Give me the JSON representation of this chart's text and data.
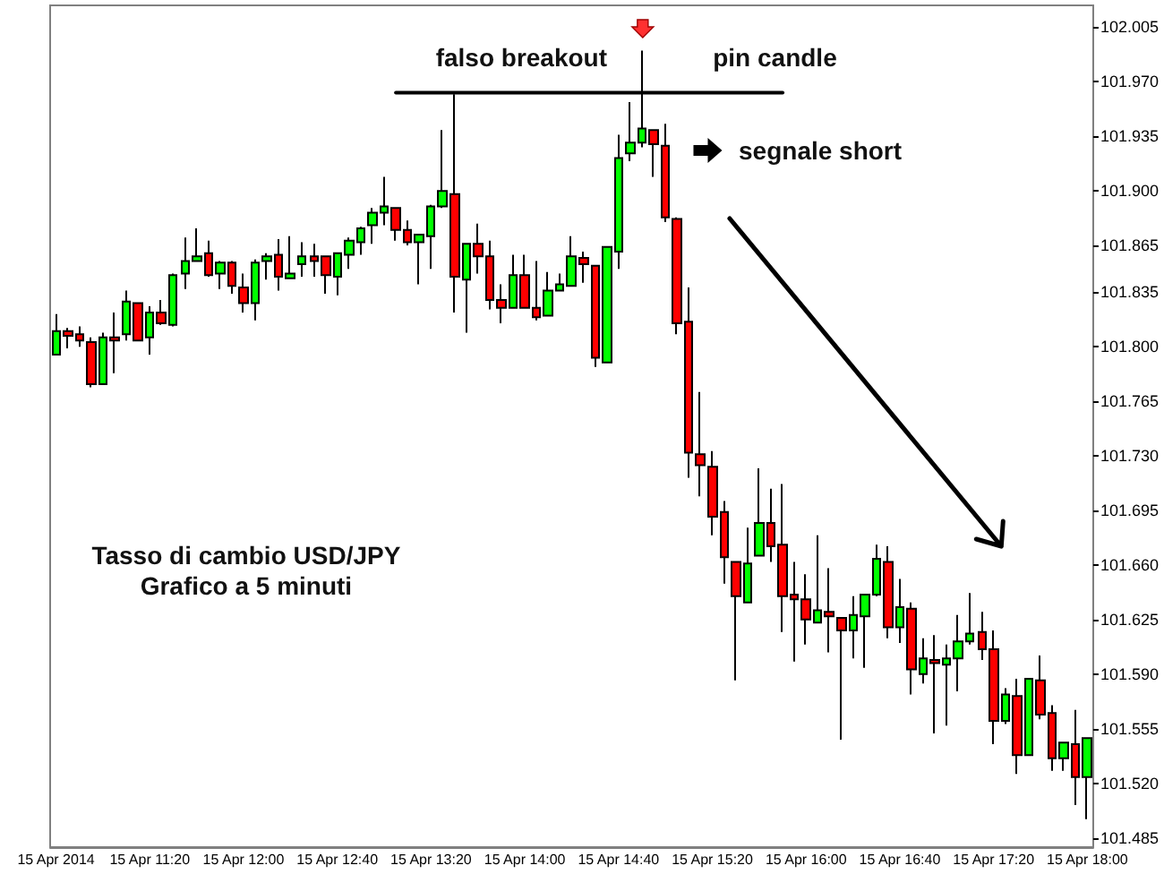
{
  "chart_data": {
    "type": "candlestick",
    "annotations": [
      "falso breakout",
      "pin candle",
      "segnale short",
      "Tasso di cambio USD/JPY",
      "Grafico a 5 minuti"
    ],
    "categories": [
      "15 Apr 2014",
      null,
      null,
      null,
      null,
      null,
      null,
      null,
      "15 Apr 11:20",
      null,
      null,
      null,
      null,
      null,
      null,
      null,
      "15 Apr 12:00",
      null,
      null,
      null,
      null,
      null,
      null,
      null,
      "15 Apr 12:40",
      null,
      null,
      null,
      null,
      null,
      null,
      null,
      "15 Apr 13:20",
      null,
      null,
      null,
      null,
      null,
      null,
      null,
      "15 Apr 14:00",
      null,
      null,
      null,
      null,
      null,
      null,
      null,
      "15 Apr 14:40",
      null,
      null,
      null,
      null,
      null,
      null,
      null,
      "15 Apr 15:20",
      null,
      null,
      null,
      null,
      null,
      null,
      null,
      "15 Apr 16:00",
      null,
      null,
      null,
      null,
      null,
      null,
      null,
      "15 Apr 16:40",
      null,
      null,
      null,
      null,
      null,
      null,
      null,
      "15 Apr 17:20",
      null,
      null,
      null,
      null,
      null,
      null,
      null,
      "15 Apr 18:00"
    ],
    "ohlc": [
      [
        101.795,
        101.821,
        101.795,
        101.81
      ],
      [
        101.81,
        101.812,
        101.799,
        101.807
      ],
      [
        101.808,
        101.813,
        101.8,
        101.804
      ],
      [
        101.803,
        101.806,
        101.774,
        101.776
      ],
      [
        101.776,
        101.809,
        101.776,
        101.806
      ],
      [
        101.806,
        101.822,
        101.783,
        101.804
      ],
      [
        101.808,
        101.836,
        101.804,
        101.829
      ],
      [
        101.828,
        101.828,
        101.804,
        101.804
      ],
      [
        101.806,
        101.826,
        101.795,
        101.822
      ],
      [
        101.822,
        101.83,
        101.814,
        101.815
      ],
      [
        101.814,
        101.847,
        101.813,
        101.846
      ],
      [
        101.847,
        101.87,
        101.837,
        101.855
      ],
      [
        101.855,
        101.876,
        101.855,
        101.858
      ],
      [
        101.86,
        101.868,
        101.845,
        101.846
      ],
      [
        101.847,
        101.855,
        101.837,
        101.854
      ],
      [
        101.854,
        101.855,
        101.834,
        101.839
      ],
      [
        101.838,
        101.847,
        101.822,
        101.828
      ],
      [
        101.828,
        101.856,
        101.817,
        101.854
      ],
      [
        101.855,
        101.86,
        101.843,
        101.858
      ],
      [
        101.859,
        101.869,
        101.836,
        101.845
      ],
      [
        101.844,
        101.871,
        101.844,
        101.847
      ],
      [
        101.853,
        101.867,
        101.845,
        101.858
      ],
      [
        101.858,
        101.866,
        101.845,
        101.855
      ],
      [
        101.858,
        101.858,
        101.834,
        101.846
      ],
      [
        101.845,
        101.86,
        101.833,
        101.86
      ],
      [
        101.859,
        101.87,
        101.85,
        101.868
      ],
      [
        101.867,
        101.877,
        101.859,
        101.876
      ],
      [
        101.878,
        101.889,
        101.866,
        101.886
      ],
      [
        101.886,
        101.909,
        101.878,
        101.89
      ],
      [
        101.889,
        101.889,
        101.868,
        101.875
      ],
      [
        101.875,
        101.881,
        101.865,
        101.867
      ],
      [
        101.867,
        101.872,
        101.84,
        101.872
      ],
      [
        101.871,
        101.891,
        101.85,
        101.89
      ],
      [
        101.89,
        101.939,
        101.889,
        101.9
      ],
      [
        101.898,
        101.962,
        101.822,
        101.845
      ],
      [
        101.843,
        101.866,
        101.809,
        101.866
      ],
      [
        101.866,
        101.879,
        101.847,
        101.858
      ],
      [
        101.858,
        101.868,
        101.824,
        101.83
      ],
      [
        101.83,
        101.84,
        101.815,
        101.825
      ],
      [
        101.825,
        101.859,
        101.825,
        101.846
      ],
      [
        101.846,
        101.859,
        101.825,
        101.825
      ],
      [
        101.825,
        101.855,
        101.817,
        101.819
      ],
      [
        101.82,
        101.848,
        101.82,
        101.836
      ],
      [
        101.836,
        101.847,
        101.836,
        101.84
      ],
      [
        101.839,
        101.871,
        101.839,
        101.858
      ],
      [
        101.857,
        101.861,
        101.841,
        101.853
      ],
      [
        101.852,
        101.852,
        101.787,
        101.793
      ],
      [
        101.79,
        101.864,
        101.79,
        101.864
      ],
      [
        101.861,
        101.936,
        101.85,
        101.921
      ],
      [
        101.924,
        101.957,
        101.919,
        101.931
      ],
      [
        101.931,
        101.99,
        101.928,
        101.94
      ],
      [
        101.939,
        101.939,
        101.909,
        101.93
      ],
      [
        101.929,
        101.943,
        101.88,
        101.883
      ],
      [
        101.882,
        101.883,
        101.808,
        101.815
      ],
      [
        101.816,
        101.838,
        101.716,
        101.732
      ],
      [
        101.731,
        101.771,
        101.704,
        101.724
      ],
      [
        101.723,
        101.733,
        101.679,
        101.691
      ],
      [
        101.694,
        101.701,
        101.648,
        101.665
      ],
      [
        101.662,
        101.662,
        101.586,
        101.64
      ],
      [
        101.636,
        101.684,
        101.636,
        101.661
      ],
      [
        101.666,
        101.722,
        101.666,
        101.687
      ],
      [
        101.687,
        101.709,
        101.662,
        101.672
      ],
      [
        101.673,
        101.712,
        101.617,
        101.64
      ],
      [
        101.641,
        101.662,
        101.598,
        101.638
      ],
      [
        101.638,
        101.654,
        101.609,
        101.625
      ],
      [
        101.623,
        101.679,
        101.623,
        101.631
      ],
      [
        101.63,
        101.658,
        101.604,
        101.627
      ],
      [
        101.626,
        101.626,
        101.548,
        101.618
      ],
      [
        101.618,
        101.64,
        101.6,
        101.628
      ],
      [
        101.627,
        101.641,
        101.594,
        101.641
      ],
      [
        101.641,
        101.673,
        101.64,
        101.664
      ],
      [
        101.662,
        101.672,
        101.613,
        101.62
      ],
      [
        101.62,
        101.651,
        101.61,
        101.633
      ],
      [
        101.632,
        101.636,
        101.577,
        101.593
      ],
      [
        101.59,
        101.613,
        101.584,
        101.6
      ],
      [
        101.599,
        101.615,
        101.552,
        101.597
      ],
      [
        101.596,
        101.609,
        101.557,
        101.6
      ],
      [
        101.6,
        101.628,
        101.579,
        101.611
      ],
      [
        101.611,
        101.642,
        101.609,
        101.616
      ],
      [
        101.617,
        101.63,
        101.599,
        101.606
      ],
      [
        101.606,
        101.618,
        101.545,
        101.56
      ],
      [
        101.56,
        101.581,
        101.558,
        101.577
      ],
      [
        101.576,
        101.587,
        101.526,
        101.538
      ],
      [
        101.538,
        101.587,
        101.538,
        101.587
      ],
      [
        101.586,
        101.602,
        101.561,
        101.564
      ],
      [
        101.565,
        101.57,
        101.528,
        101.536
      ],
      [
        101.536,
        101.546,
        101.528,
        101.546
      ],
      [
        101.545,
        101.567,
        101.506,
        101.524
      ],
      [
        101.524,
        101.549,
        101.497,
        101.549
      ]
    ],
    "colors": [
      "#00ff00",
      "#ff0000",
      "#ff0000",
      "#ff0000",
      "#00ff00",
      "#ff0000",
      "#00ff00",
      "#ff0000",
      "#00ff00",
      "#ff0000",
      "#00ff00",
      "#00ff00",
      "#00ff00",
      "#ff0000",
      "#00ff00",
      "#ff0000",
      "#ff0000",
      "#00ff00",
      "#00ff00",
      "#ff0000",
      "#00ff00",
      "#00ff00",
      "#ff0000",
      "#ff0000",
      "#00ff00",
      "#00ff00",
      "#00ff00",
      "#00ff00",
      "#00ff00",
      "#ff0000",
      "#ff0000",
      "#00ff00",
      "#00ff00",
      "#00ff00",
      "#ff0000",
      "#00ff00",
      "#ff0000",
      "#ff0000",
      "#ff0000",
      "#00ff00",
      "#ff0000",
      "#ff0000",
      "#00ff00",
      "#00ff00",
      "#00ff00",
      "#ff0000",
      "#ff0000",
      "#00ff00",
      "#00ff00",
      "#00ff00",
      "#00ff00",
      "#ff0000",
      "#ff0000",
      "#ff0000",
      "#ff0000",
      "#ff0000",
      "#ff0000",
      "#ff0000",
      "#ff0000",
      "#00ff00",
      "#00ff00",
      "#ff0000",
      "#ff0000",
      "#ff0000",
      "#ff0000",
      "#00ff00",
      "#ff0000",
      "#ff0000",
      "#00ff00",
      "#00ff00",
      "#00ff00",
      "#ff0000",
      "#00ff00",
      "#ff0000",
      "#00ff00",
      "#ff0000",
      "#00ff00",
      "#00ff00",
      "#00ff00",
      "#ff0000",
      "#ff0000",
      "#00ff00",
      "#ff0000",
      "#00ff00",
      "#ff0000",
      "#ff0000",
      "#00ff00",
      "#ff0000",
      "#00ff00"
    ],
    "series": [
      {
        "type": "line",
        "color": "#000000",
        "values": [
          null,
          null,
          null,
          null,
          null,
          null,
          null,
          null,
          null,
          null,
          null,
          null,
          null,
          null,
          null,
          null,
          null,
          null,
          null,
          null,
          null,
          null,
          null,
          null,
          null,
          null,
          null,
          null,
          null,
          101.963,
          null,
          null,
          null,
          null,
          null,
          null,
          null,
          null,
          null,
          null,
          null,
          null,
          null,
          null,
          null,
          null,
          null,
          null,
          null,
          null,
          null,
          null,
          null,
          null,
          null,
          null,
          null,
          null,
          null,
          null,
          null,
          null,
          101.963,
          null,
          null,
          null,
          null,
          null,
          null,
          null,
          null,
          null,
          null,
          null,
          null,
          null,
          null,
          null,
          null,
          null,
          null,
          null,
          null,
          null,
          null,
          null,
          null,
          null,
          null
        ]
      }
    ],
    "ylim": [
      101.479,
      102.019
    ],
    "yticks": [
      101.485,
      {
        "value": 101.52,
        "label": "101.520"
      },
      101.555,
      {
        "value": 101.59,
        "label": "101.590"
      },
      101.625,
      {
        "value": 101.66,
        "label": "101.660"
      },
      101.695,
      {
        "value": 101.73,
        "label": "101.730"
      },
      101.765,
      {
        "value": 101.8,
        "label": "101.800"
      },
      101.835,
      101.865,
      {
        "value": 101.9,
        "label": "101.900"
      },
      101.935,
      {
        "value": 101.97,
        "label": "101.970"
      },
      102.005
    ],
    "grid": false
  }
}
